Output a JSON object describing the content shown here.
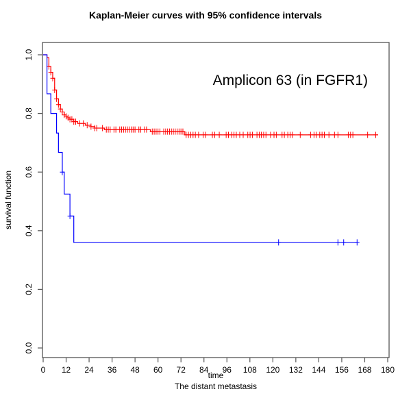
{
  "chart_data": {
    "type": "line",
    "title": "Kaplan-Meier curves with 95% confidence intervals",
    "annotation": "Amplicon 63 (in FGFR1)",
    "xlabel": "time",
    "subtitle": "The distant metastasis",
    "ylabel": "survival function",
    "xlim": [
      0,
      180
    ],
    "ylim": [
      0,
      1
    ],
    "xticks": [
      "0",
      "12",
      "24",
      "36",
      "48",
      "60",
      "72",
      "84",
      "96",
      "108",
      "120",
      "132",
      "144",
      "156",
      "168",
      "180"
    ],
    "yticks": [
      "0.0",
      "0.2",
      "0.4",
      "0.6",
      "0.8",
      "1.0"
    ],
    "grid": false,
    "series": [
      {
        "color": "#ff0000",
        "steps": [
          [
            0,
            1.0
          ],
          [
            2,
            0.99
          ],
          [
            3,
            0.96
          ],
          [
            4,
            0.94
          ],
          [
            5,
            0.92
          ],
          [
            6,
            0.88
          ],
          [
            7,
            0.85
          ],
          [
            8,
            0.83
          ],
          [
            9,
            0.815
          ],
          [
            10,
            0.805
          ],
          [
            11,
            0.795
          ],
          [
            12,
            0.79
          ],
          [
            13,
            0.785
          ],
          [
            14,
            0.78
          ],
          [
            16,
            0.772
          ],
          [
            18,
            0.766
          ],
          [
            22,
            0.76
          ],
          [
            25,
            0.755
          ],
          [
            27,
            0.75
          ],
          [
            32,
            0.745
          ],
          [
            56,
            0.738
          ],
          [
            74,
            0.727
          ]
        ],
        "end": 175,
        "censored": [
          3,
          4,
          5,
          6,
          7,
          8,
          9,
          10,
          11,
          12,
          13,
          14,
          15,
          16,
          17,
          19,
          21,
          23,
          25,
          27,
          28,
          31,
          33,
          34,
          35,
          37,
          38,
          40,
          41,
          42,
          43,
          44,
          45,
          46,
          47,
          48,
          50,
          51,
          53,
          54,
          57,
          58,
          59,
          60,
          61,
          63,
          64,
          65,
          66,
          67,
          68,
          69,
          70,
          71,
          72,
          73,
          74.7,
          75.9,
          77.1,
          78.3,
          79.5,
          81.2,
          83.6,
          84.8,
          88.4,
          89.6,
          92,
          95.6,
          96.8,
          98.5,
          99.7,
          100.9,
          102.7,
          104.5,
          106.9,
          108.1,
          109.3,
          111.7,
          112.9,
          114,
          115.2,
          116.4,
          118.8,
          120.6,
          121.8,
          124.8,
          126,
          127.8,
          129,
          130.2,
          134.3,
          139.7,
          141.5,
          142.7,
          144.5,
          145.7,
          146.9,
          149.3,
          152.2,
          154,
          159.4,
          160.6,
          161.8,
          169.5,
          173.7
        ]
      },
      {
        "color": "#0000ff",
        "steps": [
          [
            0,
            1.0
          ],
          [
            2,
            0.867
          ],
          [
            4,
            0.8
          ],
          [
            7,
            0.733
          ],
          [
            8,
            0.667
          ],
          [
            10,
            0.6
          ],
          [
            11,
            0.525
          ],
          [
            14,
            0.45
          ],
          [
            16,
            0.36
          ]
        ],
        "end": 164,
        "censored": [
          10,
          14,
          123,
          154,
          157,
          164
        ]
      }
    ]
  }
}
